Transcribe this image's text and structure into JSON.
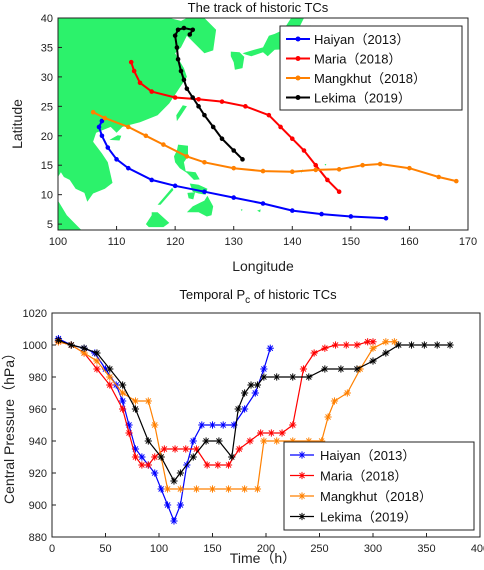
{
  "chart_data": [
    {
      "type": "line",
      "title": "The track of historic TCs",
      "xlabel": "Longitude",
      "ylabel": "Latitude",
      "xlim": [
        100,
        170
      ],
      "ylim": [
        4,
        40
      ],
      "xticks": [
        100,
        110,
        120,
        130,
        140,
        150,
        160,
        170
      ],
      "yticks": [
        5,
        10,
        15,
        20,
        25,
        30,
        35,
        40
      ],
      "background": "land map (green)",
      "legend": "top-right",
      "series": [
        {
          "name": "Haiyan（2013）",
          "color": "#0000ff",
          "x": [
            156,
            150,
            145,
            140,
            135,
            130,
            125,
            120,
            116,
            112,
            110,
            108.5,
            107.5,
            107,
            107.5
          ],
          "y": [
            6,
            6.3,
            6.7,
            7.3,
            8.5,
            9.5,
            10.5,
            11.5,
            12.5,
            14.5,
            16,
            18,
            20,
            21.5,
            22.5
          ]
        },
        {
          "name": "Maria（2018）",
          "color": "#ff0000",
          "x": [
            148,
            146,
            144,
            142,
            140,
            138,
            136,
            132,
            128,
            124,
            120,
            116,
            114,
            113,
            112.5
          ],
          "y": [
            10.5,
            12.5,
            15,
            17.5,
            19.5,
            21.5,
            23.5,
            25,
            25.8,
            26.2,
            26.5,
            27.5,
            29,
            31,
            32.5
          ]
        },
        {
          "name": "Mangkhut（2018）",
          "color": "#ff8000",
          "x": [
            168,
            165,
            160,
            155,
            152,
            148,
            144,
            140,
            135,
            130,
            125,
            122,
            118,
            115,
            112,
            108,
            106
          ],
          "y": [
            12.3,
            13,
            14.5,
            15.2,
            15,
            14.3,
            14.2,
            13.9,
            14,
            14.5,
            15.5,
            16.5,
            18.5,
            20,
            21.5,
            23,
            24
          ]
        },
        {
          "name": "Lekima（2019）",
          "color": "#000000",
          "x": [
            131.5,
            130,
            128,
            126.5,
            125,
            124,
            123,
            122,
            121.5,
            121,
            120.5,
            120.3,
            120,
            120.5,
            121.5,
            123,
            122.5
          ],
          "y": [
            16,
            17.5,
            19.5,
            21.5,
            23.5,
            25,
            26.5,
            28,
            29.5,
            31,
            33,
            35,
            37,
            38,
            38.3,
            38,
            37.2
          ]
        }
      ]
    },
    {
      "type": "line",
      "title": "Temporal P",
      "title_sub": "c",
      "title_rest": " of historic TCs",
      "xlabel": "Time（h）",
      "ylabel": "Central Pressure（hPa）",
      "xlim": [
        0,
        400
      ],
      "ylim": [
        880,
        1020
      ],
      "xticks": [
        0,
        50,
        100,
        150,
        200,
        250,
        300,
        350,
        400
      ],
      "yticks": [
        880,
        900,
        920,
        940,
        960,
        980,
        1000,
        1020
      ],
      "legend": "bottom-right",
      "series": [
        {
          "name": "Haiyan（2013）",
          "color": "#0000ff",
          "marker": "*",
          "x": [
            6,
            18,
            30,
            40,
            50,
            60,
            66,
            72,
            78,
            84,
            90,
            96,
            102,
            108,
            114,
            120,
            126,
            132,
            140,
            150,
            160,
            170,
            180,
            190,
            198,
            204
          ],
          "y": [
            1004,
            1000,
            998,
            995,
            985,
            975,
            965,
            950,
            935,
            930,
            925,
            920,
            910,
            900,
            890,
            900,
            925,
            940,
            950,
            950,
            950,
            950,
            960,
            970,
            985,
            998
          ]
        },
        {
          "name": "Maria（2018）",
          "color": "#ff0000",
          "marker": "*",
          "x": [
            6,
            18,
            30,
            42,
            54,
            66,
            72,
            78,
            84,
            90,
            96,
            105,
            115,
            125,
            135,
            145,
            155,
            165,
            175,
            185,
            195,
            205,
            215,
            225,
            235,
            245,
            255,
            265,
            275,
            285,
            295,
            300
          ],
          "y": [
            1002,
            1000,
            995,
            985,
            975,
            960,
            945,
            930,
            925,
            925,
            930,
            935,
            935,
            935,
            935,
            925,
            925,
            925,
            935,
            940,
            945,
            945,
            945,
            950,
            985,
            995,
            998,
            1000,
            1000,
            1000,
            1002,
            1002
          ]
        },
        {
          "name": "Mangkhut（2018）",
          "color": "#ff8000",
          "marker": "*",
          "x": [
            6,
            18,
            30,
            42,
            54,
            66,
            78,
            90,
            96,
            102,
            108,
            120,
            135,
            150,
            165,
            180,
            192,
            198,
            210,
            225,
            240,
            252,
            258,
            264,
            276,
            288,
            300,
            312,
            320
          ],
          "y": [
            1002,
            1000,
            995,
            990,
            980,
            970,
            965,
            965,
            950,
            930,
            910,
            910,
            910,
            910,
            910,
            910,
            910,
            940,
            940,
            940,
            940,
            940,
            955,
            965,
            970,
            985,
            998,
            1002,
            1002
          ]
        },
        {
          "name": "Lekima（2019）",
          "color": "#000000",
          "marker": "*",
          "x": [
            6,
            18,
            30,
            42,
            54,
            66,
            78,
            90,
            102,
            114,
            120,
            132,
            144,
            156,
            168,
            174,
            180,
            186,
            192,
            198,
            210,
            225,
            240,
            255,
            270,
            285,
            300,
            312,
            324,
            336,
            348,
            360,
            372
          ],
          "y": [
            1003,
            1000,
            998,
            995,
            985,
            975,
            960,
            940,
            930,
            915,
            920,
            930,
            940,
            940,
            930,
            960,
            970,
            975,
            975,
            980,
            980,
            980,
            980,
            985,
            985,
            985,
            990,
            995,
            1000,
            1000,
            1000,
            1000,
            1000
          ]
        }
      ]
    }
  ]
}
